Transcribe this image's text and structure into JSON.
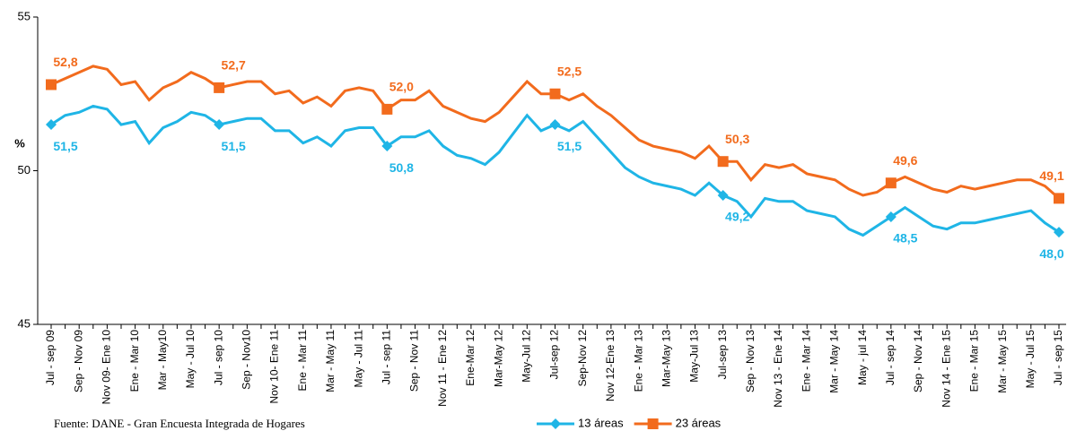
{
  "chart_data": {
    "type": "line",
    "y_label": "%",
    "source": "Fuente: DANE - Gran Encuesta Integrada de Hogares",
    "legend": "bottom",
    "ylim": [
      45,
      55
    ],
    "yticks": [
      45,
      50,
      55
    ],
    "categories": [
      "Jul - sep 09",
      null,
      "Sep - Nov 09",
      null,
      "Nov 09- Ene 10",
      null,
      "Ene - Mar 10",
      null,
      "Mar - May10",
      null,
      "May - Jul 10",
      null,
      "Jul - sep 10",
      null,
      "Sep - Nov10",
      null,
      "Nov 10- Ene 11",
      null,
      "Ene - Mar 11",
      null,
      "Mar - May 11",
      null,
      "May - Jul 11",
      null,
      "Jul - sep 11",
      null,
      "Sep - Nov 11",
      null,
      "Nov 11 - Ene 12",
      null,
      "Ene-Mar 12",
      null,
      "Mar-May 12",
      null,
      "May-Jul 12",
      null,
      "Jul-sep 12",
      null,
      "Sep-Nov 12",
      null,
      "Nov 12-Ene 13",
      null,
      "Ene - Mar 13",
      null,
      "Mar-May 13",
      null,
      "May-Jul 13",
      null,
      "Jul-sep 13",
      null,
      "Sep - Nov 13",
      null,
      "Nov 13 - Ene 14",
      null,
      "Ene - Mar 14",
      null,
      "Mar - May 14",
      null,
      "May - jul 14",
      null,
      "Jul - sep 14",
      null,
      "Sep - Nov 14",
      null,
      "Nov 14 - Ene 15",
      null,
      "Ene - Mar 15",
      null,
      "Mar - May 15",
      null,
      "May - Jul 15",
      null,
      "Jul - sep 15"
    ],
    "series": [
      {
        "name": "13 áreas",
        "color": "#1fb5e6",
        "marker": "diamond",
        "label_side": "below",
        "values": [
          51.5,
          51.8,
          51.9,
          52.1,
          52.0,
          51.5,
          51.6,
          50.9,
          51.4,
          51.6,
          51.9,
          51.8,
          51.5,
          51.6,
          51.7,
          51.7,
          51.3,
          51.3,
          50.9,
          51.1,
          50.8,
          51.3,
          51.4,
          51.4,
          50.8,
          51.1,
          51.1,
          51.3,
          50.8,
          50.5,
          50.4,
          50.2,
          50.6,
          51.2,
          51.8,
          51.3,
          51.5,
          51.3,
          51.6,
          51.1,
          50.6,
          50.1,
          49.8,
          49.6,
          49.5,
          49.4,
          49.2,
          49.6,
          49.2,
          49.0,
          48.5,
          49.1,
          49.0,
          49.0,
          48.7,
          48.6,
          48.5,
          48.1,
          47.9,
          48.2,
          48.5,
          48.8,
          48.5,
          48.2,
          48.1,
          48.3,
          48.3,
          48.4,
          48.5,
          48.6,
          48.7,
          48.3,
          48.0
        ],
        "value_labels": [
          "51,5",
          null,
          null,
          null,
          null,
          null,
          null,
          null,
          null,
          null,
          null,
          null,
          "51,5",
          null,
          null,
          null,
          null,
          null,
          null,
          null,
          null,
          null,
          null,
          null,
          "50,8",
          null,
          null,
          null,
          null,
          null,
          null,
          null,
          null,
          null,
          null,
          null,
          "51,5",
          null,
          null,
          null,
          null,
          null,
          null,
          null,
          null,
          null,
          null,
          null,
          "49,2",
          null,
          null,
          null,
          null,
          null,
          null,
          null,
          null,
          null,
          null,
          null,
          "48,5",
          null,
          null,
          null,
          null,
          null,
          null,
          null,
          null,
          null,
          null,
          null,
          "48,0"
        ]
      },
      {
        "name": "23 áreas",
        "color": "#f26b1d",
        "marker": "square",
        "label_side": "above",
        "values": [
          52.8,
          53.0,
          53.2,
          53.4,
          53.3,
          52.8,
          52.9,
          52.3,
          52.7,
          52.9,
          53.2,
          53.0,
          52.7,
          52.8,
          52.9,
          52.9,
          52.5,
          52.6,
          52.2,
          52.4,
          52.1,
          52.6,
          52.7,
          52.6,
          52.0,
          52.3,
          52.3,
          52.6,
          52.1,
          51.9,
          51.7,
          51.6,
          51.9,
          52.4,
          52.9,
          52.5,
          52.5,
          52.3,
          52.5,
          52.1,
          51.8,
          51.4,
          51.0,
          50.8,
          50.7,
          50.6,
          50.4,
          50.8,
          50.3,
          50.3,
          49.7,
          50.2,
          50.1,
          50.2,
          49.9,
          49.8,
          49.7,
          49.4,
          49.2,
          49.3,
          49.6,
          49.8,
          49.6,
          49.4,
          49.3,
          49.5,
          49.4,
          49.5,
          49.6,
          49.7,
          49.7,
          49.5,
          49.1
        ],
        "value_labels": [
          "52,8",
          null,
          null,
          null,
          null,
          null,
          null,
          null,
          null,
          null,
          null,
          null,
          "52,7",
          null,
          null,
          null,
          null,
          null,
          null,
          null,
          null,
          null,
          null,
          null,
          "52,0",
          null,
          null,
          null,
          null,
          null,
          null,
          null,
          null,
          null,
          null,
          null,
          "52,5",
          null,
          null,
          null,
          null,
          null,
          null,
          null,
          null,
          null,
          null,
          null,
          "50,3",
          null,
          null,
          null,
          null,
          null,
          null,
          null,
          null,
          null,
          null,
          null,
          "49,6",
          null,
          null,
          null,
          null,
          null,
          null,
          null,
          null,
          null,
          null,
          null,
          "49,1"
        ]
      }
    ]
  }
}
